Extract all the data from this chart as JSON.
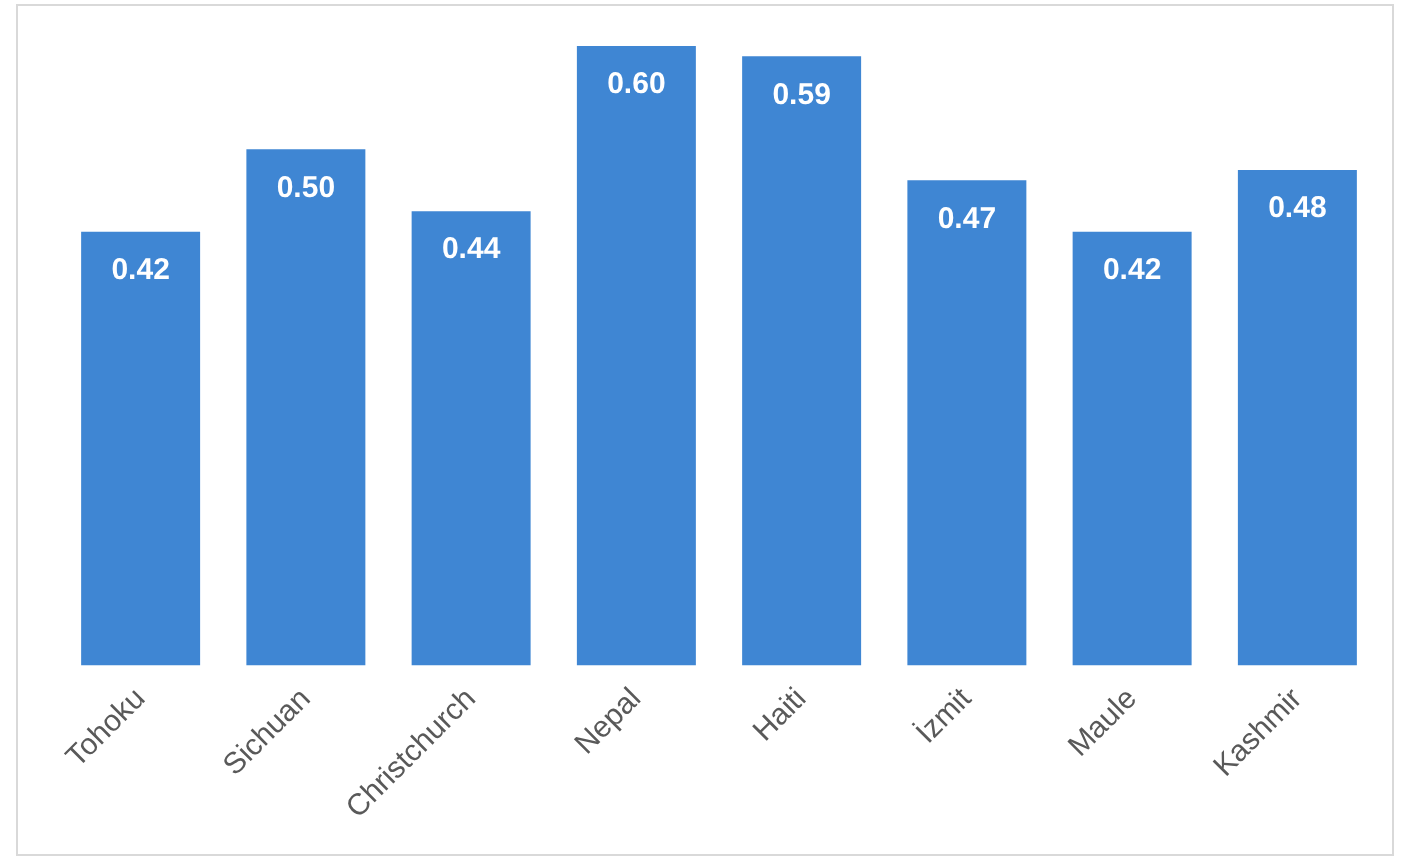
{
  "chart_data": {
    "type": "bar",
    "categories": [
      "Tohoku",
      "Sichuan",
      "Christchurch",
      "Nepal",
      "Haiti",
      "İzmit",
      "Maule",
      "Kashmir"
    ],
    "values": [
      0.42,
      0.5,
      0.44,
      0.6,
      0.59,
      0.47,
      0.42,
      0.48
    ],
    "value_labels": [
      "0.42",
      "0.50",
      "0.44",
      "0.60",
      "0.59",
      "0.47",
      "0.42",
      "0.48"
    ],
    "color": "#3f86d3",
    "grid": false,
    "legend": false
  }
}
